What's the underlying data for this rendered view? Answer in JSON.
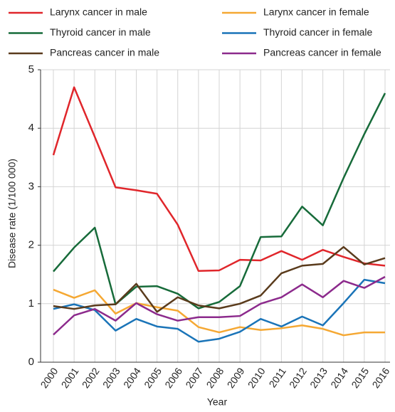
{
  "chart_data": {
    "type": "line",
    "x_label": "Year",
    "y_label": "Disease rate (1/100 000)",
    "categories": [
      "2000",
      "2001",
      "2002",
      "2003",
      "2004",
      "2005",
      "2006",
      "2007",
      "2008",
      "2009",
      "2010",
      "2011",
      "2012",
      "2013",
      "2014",
      "2015",
      "2016"
    ],
    "ylim": [
      0,
      5
    ],
    "yticks": [
      0,
      1,
      2,
      3,
      4,
      5
    ],
    "grid": true,
    "legend": "top",
    "series": [
      {
        "name": "Larynx cancer in male",
        "color": "#e0262b",
        "values": [
          3.54,
          4.7,
          3.85,
          2.99,
          2.94,
          2.88,
          2.35,
          1.56,
          1.57,
          1.75,
          1.74,
          1.9,
          1.75,
          1.92,
          1.8,
          1.69,
          1.65
        ]
      },
      {
        "name": "Larynx cancer in female",
        "color": "#f5a833",
        "values": [
          1.24,
          1.1,
          1.23,
          0.83,
          1.01,
          0.94,
          0.88,
          0.6,
          0.51,
          0.6,
          0.55,
          0.58,
          0.63,
          0.57,
          0.46,
          0.51,
          0.51
        ]
      },
      {
        "name": "Thyroid cancer in male",
        "color": "#176b3a",
        "values": [
          1.55,
          1.96,
          2.3,
          0.99,
          1.29,
          1.3,
          1.17,
          0.92,
          1.03,
          1.3,
          2.14,
          2.15,
          2.66,
          2.34,
          3.15,
          3.9,
          4.6
        ]
      },
      {
        "name": "Thyroid cancer in female",
        "color": "#1a74b8",
        "values": [
          0.91,
          0.99,
          0.89,
          0.54,
          0.74,
          0.61,
          0.57,
          0.35,
          0.4,
          0.52,
          0.74,
          0.61,
          0.78,
          0.63,
          1.01,
          1.41,
          1.35
        ]
      },
      {
        "name": "Pancreas cancer in male",
        "color": "#5a3b1c",
        "values": [
          0.96,
          0.91,
          0.97,
          0.99,
          1.34,
          0.86,
          1.11,
          0.97,
          0.92,
          1.0,
          1.14,
          1.52,
          1.65,
          1.68,
          1.97,
          1.67,
          1.78
        ]
      },
      {
        "name": "Pancreas cancer in female",
        "color": "#8c2a8c",
        "values": [
          0.47,
          0.8,
          0.91,
          0.71,
          1.01,
          0.82,
          0.71,
          0.77,
          0.77,
          0.79,
          1.0,
          1.11,
          1.33,
          1.11,
          1.39,
          1.27,
          1.46
        ]
      }
    ]
  }
}
